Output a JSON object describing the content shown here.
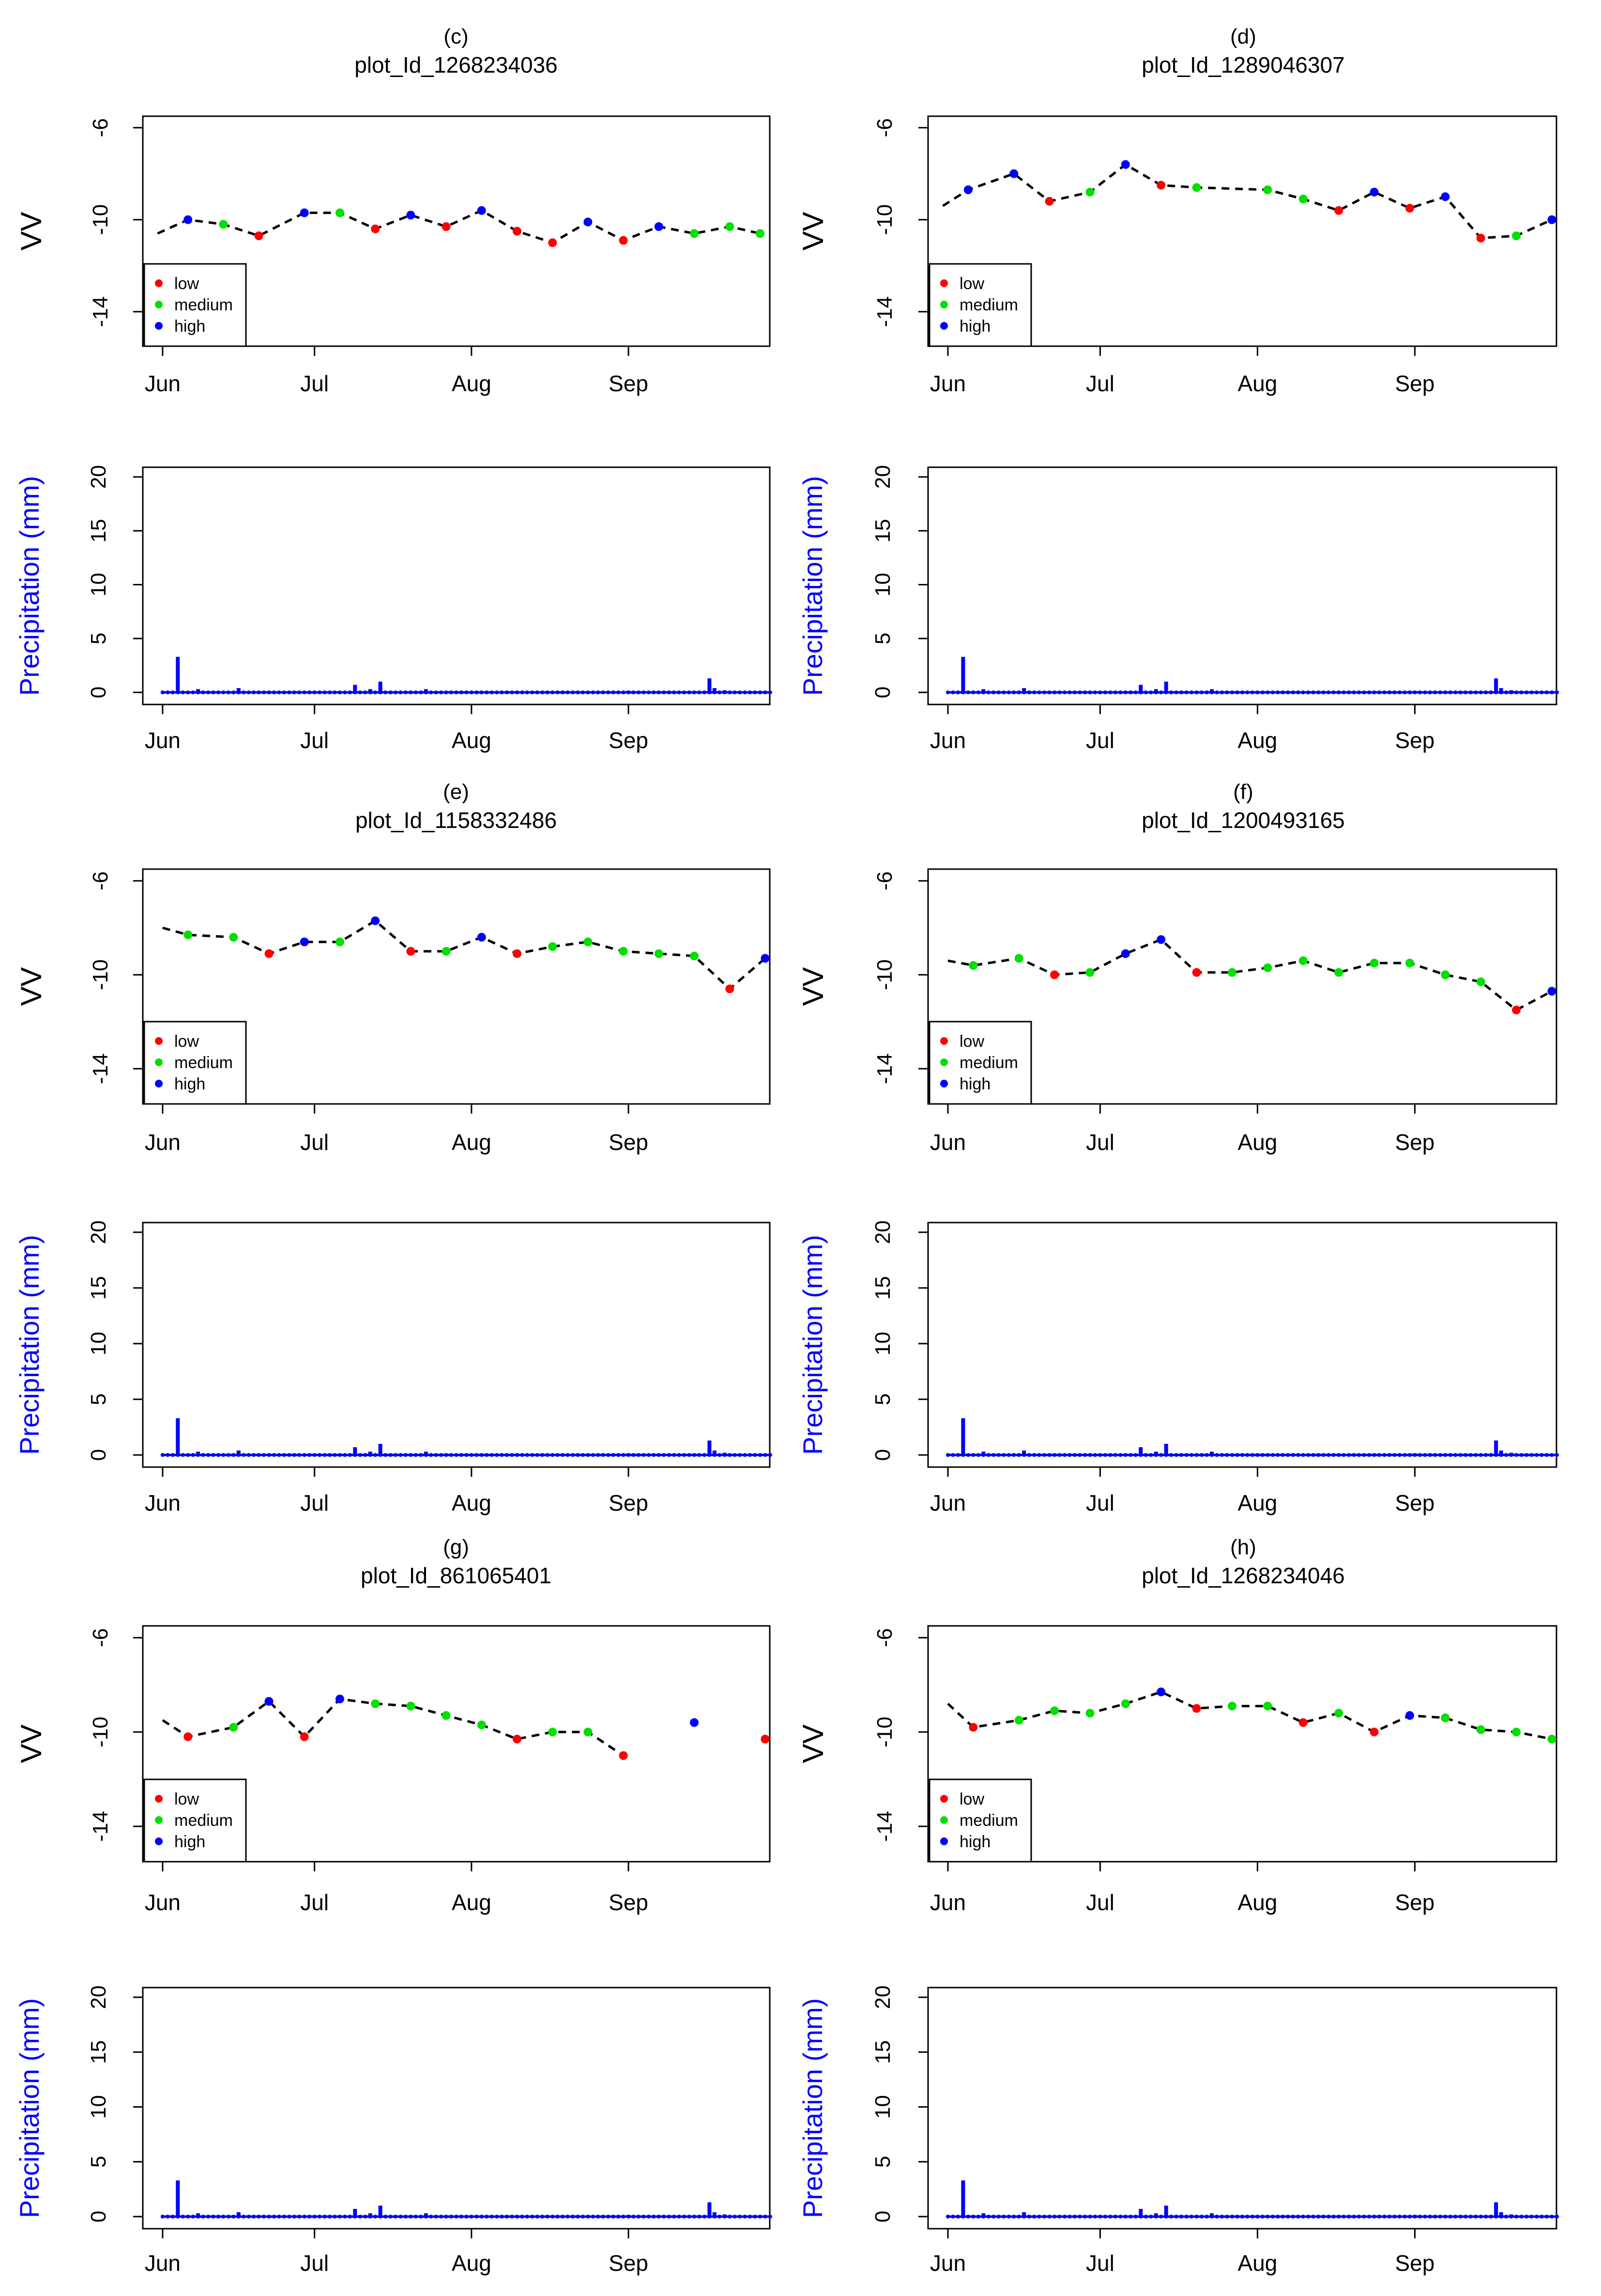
{
  "figure": {
    "colors": {
      "low": "#ff0000",
      "medium": "#00e000",
      "high": "#0000ff",
      "line": "#000000",
      "precip": "#0000ff",
      "precip_label": "#0000ff"
    },
    "legend": {
      "low": "low",
      "medium": "medium",
      "high": "high"
    },
    "month_labels": [
      "Jun",
      "Jul",
      "Aug",
      "Sep"
    ],
    "vv_axis": {
      "label": "VV",
      "ticks": [
        "-6",
        "-10",
        "-14"
      ]
    },
    "precip_axis": {
      "label": "Precipitation (mm)",
      "ticks": [
        "0",
        "5",
        "10",
        "15",
        "20"
      ]
    }
  },
  "chart_data": [
    {
      "panel": "(c)",
      "title": "plot_Id_1268234036",
      "type": "line",
      "x_unit": "day-of-year",
      "month_ticks_doy": [
        152,
        182,
        213,
        244
      ],
      "xlim": [
        150,
        270
      ],
      "ylabel": "VV",
      "ylim": [
        -15.5,
        -5.5
      ],
      "line_start": [
        151,
        -10.6
      ],
      "points": [
        {
          "x": 157,
          "y": -10.0,
          "c": "high"
        },
        {
          "x": 164,
          "y": -10.2,
          "c": "medium"
        },
        {
          "x": 171,
          "y": -10.7,
          "c": "low"
        },
        {
          "x": 180,
          "y": -9.7,
          "c": "high"
        },
        {
          "x": 187,
          "y": -9.7,
          "c": "medium"
        },
        {
          "x": 194,
          "y": -10.4,
          "c": "low"
        },
        {
          "x": 201,
          "y": -9.8,
          "c": "high"
        },
        {
          "x": 208,
          "y": -10.3,
          "c": "low"
        },
        {
          "x": 215,
          "y": -9.6,
          "c": "high"
        },
        {
          "x": 222,
          "y": -10.5,
          "c": "low"
        },
        {
          "x": 229,
          "y": -11.0,
          "c": "low"
        },
        {
          "x": 236,
          "y": -10.1,
          "c": "high"
        },
        {
          "x": 243,
          "y": -10.9,
          "c": "low"
        },
        {
          "x": 250,
          "y": -10.3,
          "c": "high"
        },
        {
          "x": 257,
          "y": -10.6,
          "c": "medium"
        },
        {
          "x": 264,
          "y": -10.3,
          "c": "medium"
        },
        {
          "x": 270,
          "y": -10.6,
          "c": "medium"
        }
      ],
      "legend": [
        "low",
        "medium",
        "high"
      ]
    },
    {
      "panel": "(d)",
      "title": "plot_Id_1289046307",
      "type": "line",
      "x_unit": "day-of-year",
      "month_ticks_doy": [
        152,
        182,
        213,
        244
      ],
      "xlim": [
        150,
        270
      ],
      "ylabel": "VV",
      "ylim": [
        -15.5,
        -5.5
      ],
      "line_start": [
        151,
        -9.4
      ],
      "points": [
        {
          "x": 156,
          "y": -8.7,
          "c": "high"
        },
        {
          "x": 165,
          "y": -8.0,
          "c": "high"
        },
        {
          "x": 172,
          "y": -9.2,
          "c": "low"
        },
        {
          "x": 180,
          "y": -8.8,
          "c": "medium"
        },
        {
          "x": 187,
          "y": -7.6,
          "c": "high"
        },
        {
          "x": 194,
          "y": -8.5,
          "c": "low"
        },
        {
          "x": 201,
          "y": -8.6,
          "c": "medium"
        },
        {
          "x": 215,
          "y": -8.7,
          "c": "medium"
        },
        {
          "x": 222,
          "y": -9.1,
          "c": "medium"
        },
        {
          "x": 229,
          "y": -9.6,
          "c": "low"
        },
        {
          "x": 236,
          "y": -8.8,
          "c": "high"
        },
        {
          "x": 243,
          "y": -9.5,
          "c": "low"
        },
        {
          "x": 250,
          "y": -9.0,
          "c": "high"
        },
        {
          "x": 257,
          "y": -10.8,
          "c": "low"
        },
        {
          "x": 264,
          "y": -10.7,
          "c": "medium"
        },
        {
          "x": 271,
          "y": -10.0,
          "c": "high"
        }
      ],
      "legend": [
        "low",
        "medium",
        "high"
      ]
    },
    {
      "panel": "(e)",
      "title": "plot_Id_1158332486",
      "type": "line",
      "x_unit": "day-of-year",
      "month_ticks_doy": [
        152,
        182,
        213,
        244
      ],
      "xlim": [
        150,
        270
      ],
      "ylabel": "VV",
      "ylim": [
        -15.5,
        -5.5
      ],
      "line_start": [
        152,
        -8.0
      ],
      "points": [
        {
          "x": 157,
          "y": -8.3,
          "c": "medium"
        },
        {
          "x": 166,
          "y": -8.4,
          "c": "medium"
        },
        {
          "x": 173,
          "y": -9.1,
          "c": "low"
        },
        {
          "x": 180,
          "y": -8.6,
          "c": "high"
        },
        {
          "x": 187,
          "y": -8.6,
          "c": "medium"
        },
        {
          "x": 194,
          "y": -7.7,
          "c": "high"
        },
        {
          "x": 201,
          "y": -9.0,
          "c": "low"
        },
        {
          "x": 208,
          "y": -9.0,
          "c": "medium"
        },
        {
          "x": 215,
          "y": -8.4,
          "c": "high"
        },
        {
          "x": 222,
          "y": -9.1,
          "c": "low"
        },
        {
          "x": 229,
          "y": -8.8,
          "c": "medium"
        },
        {
          "x": 236,
          "y": -8.6,
          "c": "medium"
        },
        {
          "x": 243,
          "y": -9.0,
          "c": "medium"
        },
        {
          "x": 250,
          "y": -9.1,
          "c": "medium"
        },
        {
          "x": 257,
          "y": -9.2,
          "c": "medium"
        },
        {
          "x": 264,
          "y": -10.6,
          "c": "low"
        },
        {
          "x": 271,
          "y": -9.3,
          "c": "high"
        }
      ],
      "legend": [
        "low",
        "medium",
        "high"
      ]
    },
    {
      "panel": "(f)",
      "title": "plot_Id_1200493165",
      "type": "line",
      "x_unit": "day-of-year",
      "month_ticks_doy": [
        152,
        182,
        213,
        244
      ],
      "xlim": [
        150,
        270
      ],
      "ylabel": "VV",
      "ylim": [
        -15.5,
        -5.5
      ],
      "line_start": [
        152,
        -9.4
      ],
      "points": [
        {
          "x": 157,
          "y": -9.6,
          "c": "medium"
        },
        {
          "x": 166,
          "y": -9.3,
          "c": "medium"
        },
        {
          "x": 173,
          "y": -10.0,
          "c": "low"
        },
        {
          "x": 180,
          "y": -9.9,
          "c": "medium"
        },
        {
          "x": 187,
          "y": -9.1,
          "c": "high"
        },
        {
          "x": 194,
          "y": -8.5,
          "c": "high"
        },
        {
          "x": 201,
          "y": -9.9,
          "c": "low"
        },
        {
          "x": 208,
          "y": -9.9,
          "c": "medium"
        },
        {
          "x": 215,
          "y": -9.7,
          "c": "medium"
        },
        {
          "x": 222,
          "y": -9.4,
          "c": "medium"
        },
        {
          "x": 229,
          "y": -9.9,
          "c": "medium"
        },
        {
          "x": 236,
          "y": -9.5,
          "c": "medium"
        },
        {
          "x": 243,
          "y": -9.5,
          "c": "medium"
        },
        {
          "x": 250,
          "y": -10.0,
          "c": "medium"
        },
        {
          "x": 257,
          "y": -10.3,
          "c": "medium"
        },
        {
          "x": 264,
          "y": -11.5,
          "c": "low"
        },
        {
          "x": 271,
          "y": -10.7,
          "c": "high"
        }
      ],
      "legend": [
        "low",
        "medium",
        "high"
      ]
    },
    {
      "panel": "(g)",
      "title": "plot_Id_861065401",
      "type": "line",
      "x_unit": "day-of-year",
      "month_ticks_doy": [
        152,
        182,
        213,
        244
      ],
      "xlim": [
        150,
        270
      ],
      "ylabel": "VV",
      "ylim": [
        -15.5,
        -5.5
      ],
      "line_start": [
        152,
        -9.5
      ],
      "points": [
        {
          "x": 157,
          "y": -10.2,
          "c": "low"
        },
        {
          "x": 166,
          "y": -9.8,
          "c": "medium"
        },
        {
          "x": 173,
          "y": -8.7,
          "c": "high"
        },
        {
          "x": 180,
          "y": -10.2,
          "c": "low"
        },
        {
          "x": 187,
          "y": -8.6,
          "c": "high"
        },
        {
          "x": 194,
          "y": -8.8,
          "c": "medium"
        },
        {
          "x": 201,
          "y": -8.9,
          "c": "medium"
        },
        {
          "x": 208,
          "y": -9.3,
          "c": "medium"
        },
        {
          "x": 215,
          "y": -9.7,
          "c": "medium"
        },
        {
          "x": 222,
          "y": -10.3,
          "c": "low"
        },
        {
          "x": 229,
          "y": -10.0,
          "c": "medium"
        },
        {
          "x": 236,
          "y": -10.0,
          "c": "medium"
        },
        {
          "x": 243,
          "y": -11.0,
          "c": "low"
        },
        {
          "x": 257,
          "y": -9.6,
          "c": "high",
          "gap": true
        },
        {
          "x": 271,
          "y": -10.3,
          "c": "low",
          "gap": true
        }
      ],
      "legend": [
        "low",
        "medium",
        "high"
      ]
    },
    {
      "panel": "(h)",
      "title": "plot_Id_1268234046",
      "type": "line",
      "x_unit": "day-of-year",
      "month_ticks_doy": [
        152,
        182,
        213,
        244
      ],
      "xlim": [
        150,
        270
      ],
      "ylabel": "VV",
      "ylim": [
        -15.5,
        -5.5
      ],
      "line_start": [
        152,
        -8.8
      ],
      "points": [
        {
          "x": 157,
          "y": -9.8,
          "c": "low"
        },
        {
          "x": 166,
          "y": -9.5,
          "c": "medium"
        },
        {
          "x": 173,
          "y": -9.1,
          "c": "medium"
        },
        {
          "x": 180,
          "y": -9.2,
          "c": "medium"
        },
        {
          "x": 187,
          "y": -8.8,
          "c": "medium"
        },
        {
          "x": 194,
          "y": -8.3,
          "c": "high"
        },
        {
          "x": 201,
          "y": -9.0,
          "c": "low"
        },
        {
          "x": 208,
          "y": -8.9,
          "c": "medium"
        },
        {
          "x": 215,
          "y": -8.9,
          "c": "medium"
        },
        {
          "x": 222,
          "y": -9.6,
          "c": "low"
        },
        {
          "x": 229,
          "y": -9.2,
          "c": "medium"
        },
        {
          "x": 236,
          "y": -10.0,
          "c": "low"
        },
        {
          "x": 243,
          "y": -9.3,
          "c": "high"
        },
        {
          "x": 250,
          "y": -9.4,
          "c": "medium"
        },
        {
          "x": 257,
          "y": -9.9,
          "c": "medium"
        },
        {
          "x": 264,
          "y": -10.0,
          "c": "medium"
        },
        {
          "x": 271,
          "y": -10.3,
          "c": "medium"
        }
      ],
      "legend": [
        "low",
        "medium",
        "high"
      ]
    },
    {
      "type": "bar",
      "panel_ref": "(c)",
      "ylabel": "Precipitation (mm)",
      "ylim": [
        0,
        20
      ],
      "x_unit": "day-of-year",
      "month_ticks_doy": [
        152,
        182,
        213,
        244
      ],
      "days": [
        152,
        272
      ],
      "spikes": [
        {
          "x": 155,
          "y": 3.3
        },
        {
          "x": 159,
          "y": 0.3
        },
        {
          "x": 167,
          "y": 0.4
        },
        {
          "x": 190,
          "y": 0.7
        },
        {
          "x": 193,
          "y": 0.3
        },
        {
          "x": 195,
          "y": 1.0
        },
        {
          "x": 204,
          "y": 0.3
        },
        {
          "x": 244,
          "y": 0.15
        },
        {
          "x": 260,
          "y": 1.3
        },
        {
          "x": 261,
          "y": 0.4
        },
        {
          "x": 263,
          "y": 0.2
        }
      ]
    },
    {
      "type": "bar",
      "panel_ref": "(d)",
      "ylabel": "Precipitation (mm)",
      "ylim": [
        0,
        20
      ],
      "x_unit": "day-of-year",
      "month_ticks_doy": [
        152,
        182,
        213,
        244
      ],
      "days": [
        152,
        272
      ],
      "spikes": [
        {
          "x": 155,
          "y": 3.3
        },
        {
          "x": 159,
          "y": 0.3
        },
        {
          "x": 167,
          "y": 0.4
        },
        {
          "x": 190,
          "y": 0.7
        },
        {
          "x": 193,
          "y": 0.3
        },
        {
          "x": 195,
          "y": 1.0
        },
        {
          "x": 204,
          "y": 0.3
        },
        {
          "x": 244,
          "y": 0.15
        },
        {
          "x": 260,
          "y": 1.3
        },
        {
          "x": 261,
          "y": 0.4
        },
        {
          "x": 263,
          "y": 0.2
        }
      ]
    },
    {
      "type": "bar",
      "panel_ref": "(e)",
      "ylabel": "Precipitation (mm)",
      "ylim": [
        0,
        20
      ],
      "x_unit": "day-of-year",
      "month_ticks_doy": [
        152,
        182,
        213,
        244
      ],
      "days": [
        152,
        272
      ],
      "spikes": [
        {
          "x": 155,
          "y": 3.3
        },
        {
          "x": 159,
          "y": 0.3
        },
        {
          "x": 167,
          "y": 0.4
        },
        {
          "x": 190,
          "y": 0.7
        },
        {
          "x": 193,
          "y": 0.3
        },
        {
          "x": 195,
          "y": 1.0
        },
        {
          "x": 204,
          "y": 0.3
        },
        {
          "x": 244,
          "y": 0.15
        },
        {
          "x": 260,
          "y": 1.3
        },
        {
          "x": 261,
          "y": 0.4
        },
        {
          "x": 263,
          "y": 0.2
        }
      ]
    },
    {
      "type": "bar",
      "panel_ref": "(f)",
      "ylabel": "Precipitation (mm)",
      "ylim": [
        0,
        20
      ],
      "x_unit": "day-of-year",
      "month_ticks_doy": [
        152,
        182,
        213,
        244
      ],
      "days": [
        152,
        272
      ],
      "spikes": [
        {
          "x": 155,
          "y": 3.3
        },
        {
          "x": 159,
          "y": 0.3
        },
        {
          "x": 167,
          "y": 0.4
        },
        {
          "x": 190,
          "y": 0.7
        },
        {
          "x": 193,
          "y": 0.3
        },
        {
          "x": 195,
          "y": 1.0
        },
        {
          "x": 204,
          "y": 0.3
        },
        {
          "x": 244,
          "y": 0.15
        },
        {
          "x": 260,
          "y": 1.3
        },
        {
          "x": 261,
          "y": 0.4
        },
        {
          "x": 263,
          "y": 0.2
        }
      ]
    },
    {
      "type": "bar",
      "panel_ref": "(g)",
      "ylabel": "Precipitation (mm)",
      "ylim": [
        0,
        20
      ],
      "x_unit": "day-of-year",
      "month_ticks_doy": [
        152,
        182,
        213,
        244
      ],
      "days": [
        152,
        272
      ],
      "spikes": [
        {
          "x": 155,
          "y": 3.3
        },
        {
          "x": 159,
          "y": 0.3
        },
        {
          "x": 167,
          "y": 0.4
        },
        {
          "x": 190,
          "y": 0.7
        },
        {
          "x": 193,
          "y": 0.3
        },
        {
          "x": 195,
          "y": 1.0
        },
        {
          "x": 204,
          "y": 0.3
        },
        {
          "x": 244,
          "y": 0.15
        },
        {
          "x": 260,
          "y": 1.3
        },
        {
          "x": 261,
          "y": 0.4
        },
        {
          "x": 263,
          "y": 0.2
        }
      ]
    },
    {
      "type": "bar",
      "panel_ref": "(h)",
      "ylabel": "Precipitation (mm)",
      "ylim": [
        0,
        20
      ],
      "x_unit": "day-of-year",
      "month_ticks_doy": [
        152,
        182,
        213,
        244
      ],
      "days": [
        152,
        272
      ],
      "spikes": [
        {
          "x": 155,
          "y": 3.3
        },
        {
          "x": 159,
          "y": 0.3
        },
        {
          "x": 167,
          "y": 0.4
        },
        {
          "x": 190,
          "y": 0.7
        },
        {
          "x": 193,
          "y": 0.3
        },
        {
          "x": 195,
          "y": 1.0
        },
        {
          "x": 204,
          "y": 0.3
        },
        {
          "x": 244,
          "y": 0.15
        },
        {
          "x": 260,
          "y": 1.3
        },
        {
          "x": 261,
          "y": 0.4
        },
        {
          "x": 263,
          "y": 0.2
        }
      ]
    }
  ]
}
